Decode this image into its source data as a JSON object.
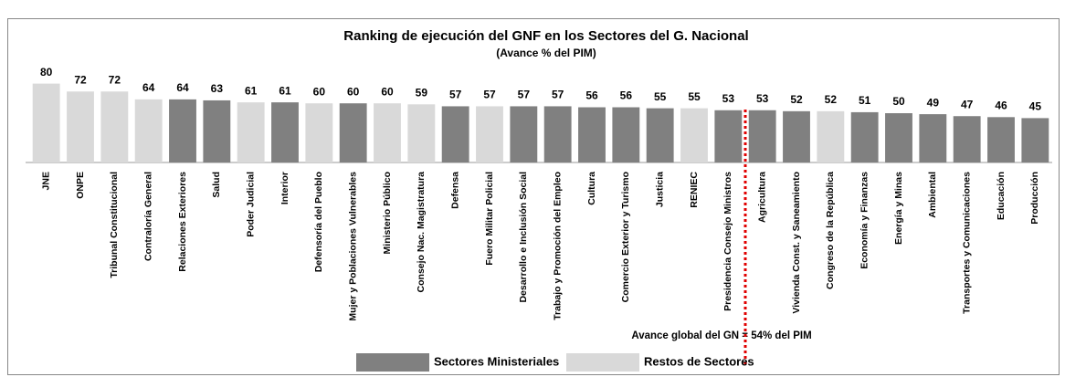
{
  "chart_data": {
    "type": "bar",
    "title": "Ranking de ejecución del GNF en los Sectores del G. Nacional",
    "subtitle": "(Avance %  del PIM)",
    "annotation": "Avance global del GN = 54% del PIM",
    "categories": [
      "JNE",
      "ONPE",
      "Tribunal Constitucional",
      "Contraloría General",
      "Relaciones Exteriores",
      "Salud",
      "Poder Judicial",
      "Interior",
      "Defensoría del Pueblo",
      "Mujer y Poblaciones Vulnerables",
      "Ministerio Público",
      "Consejo Nac. Magistratura",
      "Defensa",
      "Fuero Militar Policial",
      "Desarrollo e Inclusión Social",
      "Trabajo y Promoción del Empleo",
      "Cultura",
      "Comercio Exterior y Turismo",
      "Justicia",
      "RENIEC",
      "Presidencia Consejo Ministros",
      "Agricultura",
      "Vivienda Const. y Saneamiento",
      "Congreso de la República",
      "Economía y Finanzas",
      "Energía y Minas",
      "Ambiental",
      "Transportes y Comunicaciones",
      "Educación",
      "Producción"
    ],
    "values": [
      80,
      72,
      72,
      64,
      64,
      63,
      61,
      61,
      60,
      60,
      60,
      59,
      57,
      57,
      57,
      57,
      56,
      56,
      55,
      55,
      53,
      53,
      52,
      52,
      51,
      50,
      49,
      47,
      46,
      45
    ],
    "colors": [
      "#d9d9d9",
      "#d9d9d9",
      "#d9d9d9",
      "#d9d9d9",
      "#808080",
      "#808080",
      "#d9d9d9",
      "#808080",
      "#d9d9d9",
      "#808080",
      "#d9d9d9",
      "#d9d9d9",
      "#808080",
      "#d9d9d9",
      "#808080",
      "#808080",
      "#808080",
      "#808080",
      "#808080",
      "#d9d9d9",
      "#808080",
      "#808080",
      "#808080",
      "#d9d9d9",
      "#808080",
      "#808080",
      "#808080",
      "#808080",
      "#808080",
      "#808080"
    ],
    "legend": [
      {
        "name": "Sectores Ministeriales",
        "color": "#808080"
      },
      {
        "name": "Restos de Sectores",
        "color": "#d9d9d9"
      }
    ],
    "ylim": [
      0,
      100
    ]
  }
}
